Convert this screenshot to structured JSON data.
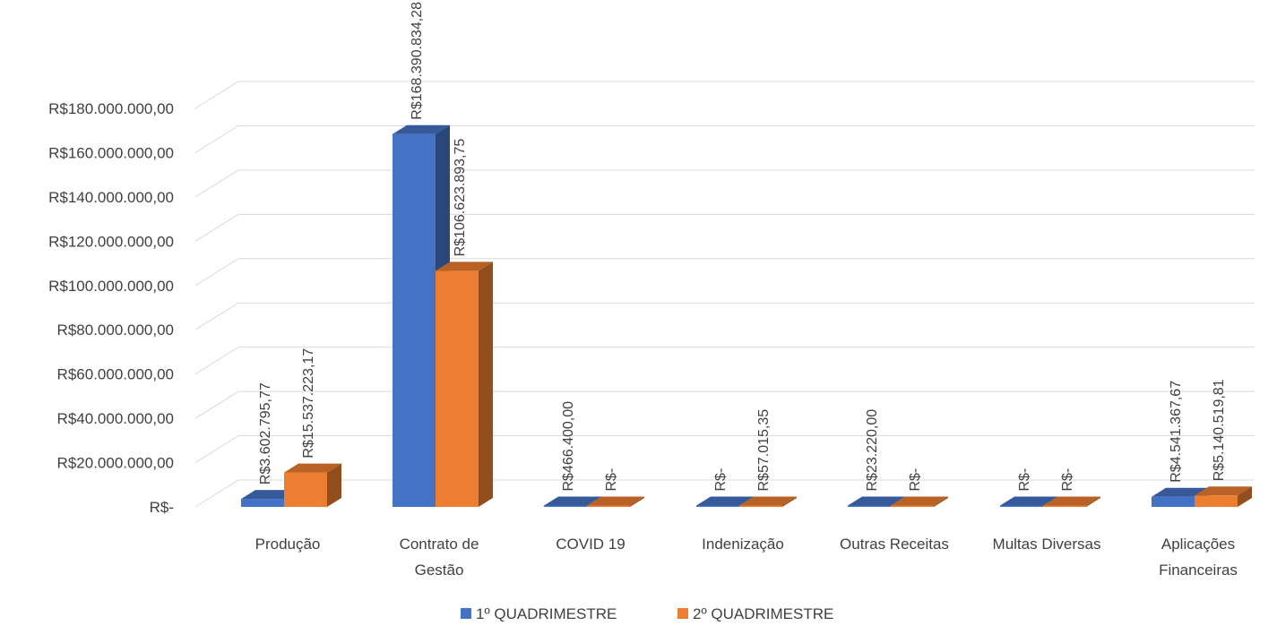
{
  "chart_data": {
    "type": "bar",
    "title": "",
    "xlabel": "",
    "ylabel": "",
    "ylim": [
      0,
      180000000
    ],
    "y_ticks": [
      {
        "value": 0,
        "label": "R$-"
      },
      {
        "value": 20000000,
        "label": "R$20.000.000,00"
      },
      {
        "value": 40000000,
        "label": "R$40.000.000,00"
      },
      {
        "value": 60000000,
        "label": "R$60.000.000,00"
      },
      {
        "value": 80000000,
        "label": "R$80.000.000,00"
      },
      {
        "value": 100000000,
        "label": "R$100.000.000,00"
      },
      {
        "value": 120000000,
        "label": "R$120.000.000,00"
      },
      {
        "value": 140000000,
        "label": "R$140.000.000,00"
      },
      {
        "value": 160000000,
        "label": "R$160.000.000,00"
      },
      {
        "value": 180000000,
        "label": "R$180.000.000,00"
      }
    ],
    "categories": [
      [
        "Produção"
      ],
      [
        "Contrato de",
        "Gestão"
      ],
      [
        "COVID 19"
      ],
      [
        "Indenização"
      ],
      [
        "Outras Receitas"
      ],
      [
        "Multas Diversas"
      ],
      [
        "Aplicações",
        "Financeiras"
      ]
    ],
    "grid": true,
    "legend_position": "bottom",
    "style": "3d-column",
    "series": [
      {
        "name": "1º QUADRIMESTRE",
        "color": "#4472c4",
        "values": [
          3602795.77,
          168390834.28,
          466400.0,
          0,
          23220.0,
          0,
          4541367.67
        ],
        "labels": [
          "R$3.602.795,77",
          "R$168.390.834,28",
          "R$466.400,00",
          "R$-",
          "R$23.220,00",
          "R$-",
          "R$4.541.367,67"
        ]
      },
      {
        "name": "2º QUADRIMESTRE",
        "color": "#ed7d31",
        "values": [
          15537223.17,
          106623893.75,
          0,
          57015.35,
          0,
          0,
          5140519.81
        ],
        "labels": [
          "R$15.537.223,17",
          "R$106.623.893,75",
          "R$-",
          "R$57.015,35",
          "R$-",
          "R$-",
          "R$5.140.519,81"
        ]
      }
    ]
  }
}
